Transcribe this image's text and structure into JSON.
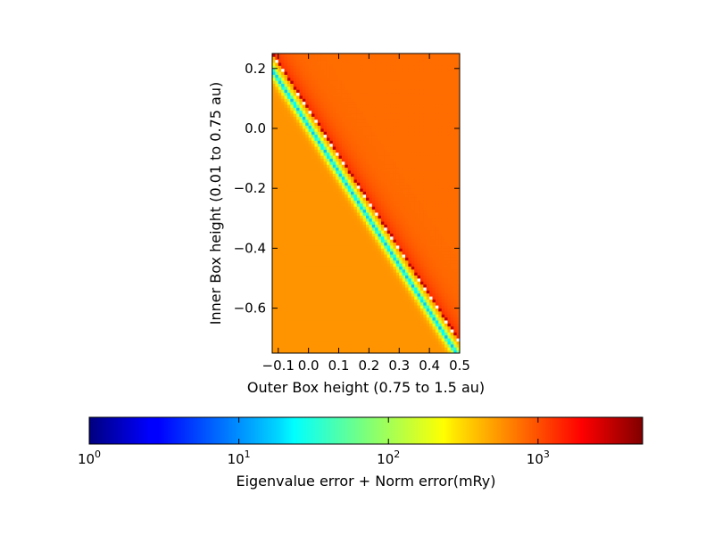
{
  "chart_data": [
    {
      "type": "heatmap",
      "xlabel": "Outer Box height (0.75 to 1.5 au)",
      "ylabel": "Inner Box height (0.01 to 0.75 au)",
      "xlim": [
        -0.12,
        0.5
      ],
      "ylim": [
        -0.75,
        0.25
      ],
      "x_ticks": [
        -0.1,
        0.0,
        0.1,
        0.2,
        0.3,
        0.4,
        0.5
      ],
      "x_tick_labels": [
        "−0.1",
        "0.0",
        "0.1",
        "0.2",
        "0.3",
        "0.4",
        "0.5"
      ],
      "y_ticks": [
        0.2,
        0.0,
        -0.2,
        -0.4,
        -0.6
      ],
      "y_tick_labels": [
        "0.2",
        "0.0",
        "−0.2",
        "−0.4",
        "−0.6"
      ],
      "grid": false,
      "colormap": "jet",
      "color_scale": "log",
      "color_range": [
        1,
        5000
      ],
      "regions": {
        "upper_right_value": 700,
        "left_region_value": 500,
        "valley_min_value": 15,
        "boundary_edge_value": 3000,
        "gap_color": "#ffffff"
      }
    },
    {
      "type": "colorbar",
      "label": "Eigenvalue error + Norm error(mRy)",
      "scale": "log",
      "range": [
        1,
        5000
      ],
      "ticks": [
        1,
        10,
        100,
        1000
      ],
      "tick_labels": [
        {
          "base": "10",
          "exp": "0"
        },
        {
          "base": "10",
          "exp": "1"
        },
        {
          "base": "10",
          "exp": "2"
        },
        {
          "base": "10",
          "exp": "3"
        }
      ]
    }
  ]
}
